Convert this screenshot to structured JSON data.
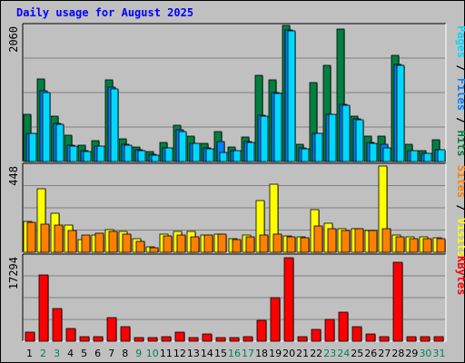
{
  "chart_data": {
    "type": "bar",
    "title": "Daily usage for August 2025",
    "days": [
      "1",
      "2",
      "3",
      "4",
      "5",
      "6",
      "7",
      "8",
      "9",
      "10",
      "11",
      "12",
      "13",
      "14",
      "15",
      "16",
      "17",
      "18",
      "19",
      "20",
      "21",
      "22",
      "23",
      "24",
      "25",
      "26",
      "27",
      "28",
      "29",
      "30",
      "31"
    ],
    "weekend_days": [
      2,
      3,
      9,
      10,
      16,
      17,
      23,
      24,
      30,
      31
    ],
    "panels": [
      {
        "name": "pages-files-hits",
        "max_label": "2060",
        "ymax": 2060,
        "legend": [
          {
            "text": "Pages",
            "color": "#00d8ff"
          },
          {
            "text": " / ",
            "color": "#000000"
          },
          {
            "text": "Files",
            "color": "#0080ff"
          },
          {
            "text": " / ",
            "color": "#000000"
          },
          {
            "text": "Hits",
            "color": "#008040"
          }
        ],
        "series": [
          {
            "name": "Hits",
            "color": "#008040",
            "values": [
              710,
              1250,
              690,
              400,
              250,
              310,
              1230,
              350,
              220,
              150,
              290,
              550,
              380,
              280,
              450,
              220,
              370,
              1300,
              1230,
              2060,
              260,
              1200,
              1460,
              2000,
              680,
              390,
              380,
              1600,
              260,
              160,
              330
            ]
          },
          {
            "name": "Files",
            "color": "#0080ff",
            "values": [
              430,
              1070,
              570,
              250,
              170,
              240,
              1130,
              260,
              180,
              110,
              200,
              480,
              280,
              200,
              300,
              170,
              300,
              700,
              1040,
              1990,
              200,
              430,
              720,
              870,
              640,
              290,
              260,
              1470,
              170,
              130,
              180
            ]
          },
          {
            "name": "Pages",
            "color": "#00d8ff",
            "values": [
              420,
              1050,
              560,
              240,
              150,
              230,
              1100,
              250,
              170,
              100,
              200,
              460,
              270,
              190,
              140,
              160,
              290,
              690,
              1030,
              1980,
              190,
              420,
              710,
              850,
              630,
              280,
              210,
              1460,
              160,
              120,
              180
            ]
          }
        ]
      },
      {
        "name": "sites-visits",
        "max_label": "448",
        "ymax": 448,
        "legend": [
          {
            "text": "Sites",
            "color": "#ff8000"
          },
          {
            "text": " / ",
            "color": "#000000"
          },
          {
            "text": "Visits",
            "color": "#ffff00"
          }
        ],
        "series": [
          {
            "name": "Visits",
            "color": "#ffff00",
            "values": [
              160,
              325,
              200,
              140,
              65,
              90,
              115,
              105,
              70,
              30,
              95,
              105,
              105,
              90,
              95,
              70,
              90,
              265,
              350,
              85,
              80,
              220,
              150,
              120,
              120,
              110,
              445,
              90,
              80,
              80,
              75
            ]
          },
          {
            "name": "Sites",
            "color": "#ff8000",
            "values": [
              155,
              145,
              140,
              110,
              90,
              100,
              105,
              95,
              55,
              25,
              85,
              90,
              80,
              90,
              95,
              65,
              80,
              90,
              95,
              80,
              75,
              135,
              120,
              110,
              120,
              110,
              120,
              80,
              70,
              70,
              70
            ]
          }
        ]
      },
      {
        "name": "kbytes",
        "max_label": "17294",
        "ymax": 17294,
        "legend": [
          {
            "text": "KBytes",
            "color": "#ff0000"
          }
        ],
        "series": [
          {
            "name": "KBytes",
            "color": "#ff0000",
            "values": [
              1800,
              13400,
              6700,
              2600,
              900,
              900,
              4800,
              3000,
              800,
              800,
              1000,
              1800,
              700,
              1500,
              700,
              700,
              900,
              4200,
              8800,
              17000,
              1000,
              2400,
              4500,
              5800,
              3000,
              1500,
              1000,
              16000,
              900,
              900,
              900
            ]
          }
        ]
      }
    ]
  }
}
